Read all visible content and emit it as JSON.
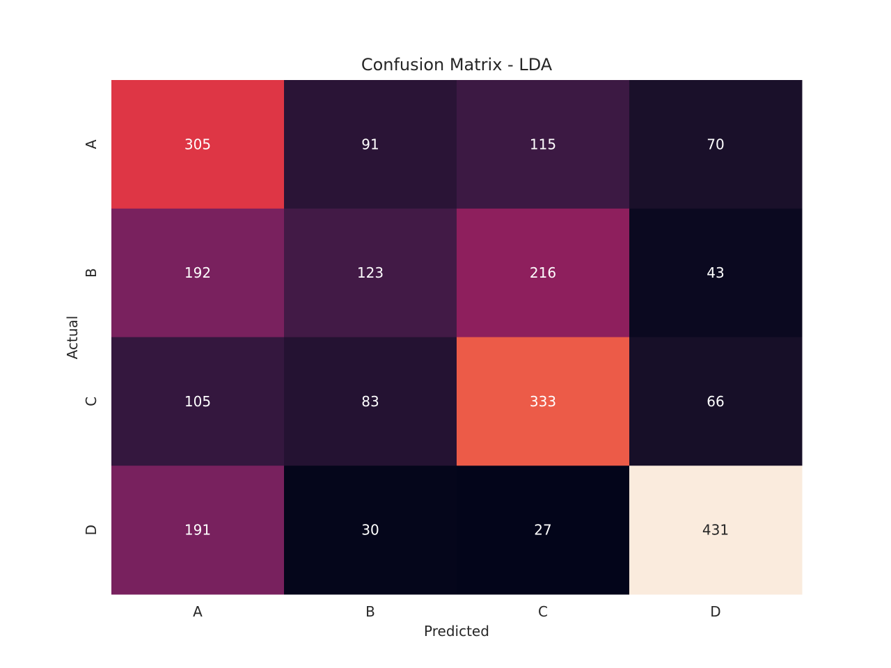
{
  "chart_data": {
    "type": "heatmap",
    "title": "Confusion Matrix - LDA",
    "xlabel": "Predicted",
    "ylabel": "Actual",
    "x_categories": [
      "A",
      "B",
      "C",
      "D"
    ],
    "y_categories": [
      "A",
      "B",
      "C",
      "D"
    ],
    "values": [
      [
        305,
        91,
        115,
        70
      ],
      [
        192,
        123,
        216,
        43
      ],
      [
        105,
        83,
        333,
        66
      ],
      [
        191,
        30,
        27,
        431
      ]
    ],
    "colormap": "rocket",
    "colorbar": false,
    "grid": false
  }
}
